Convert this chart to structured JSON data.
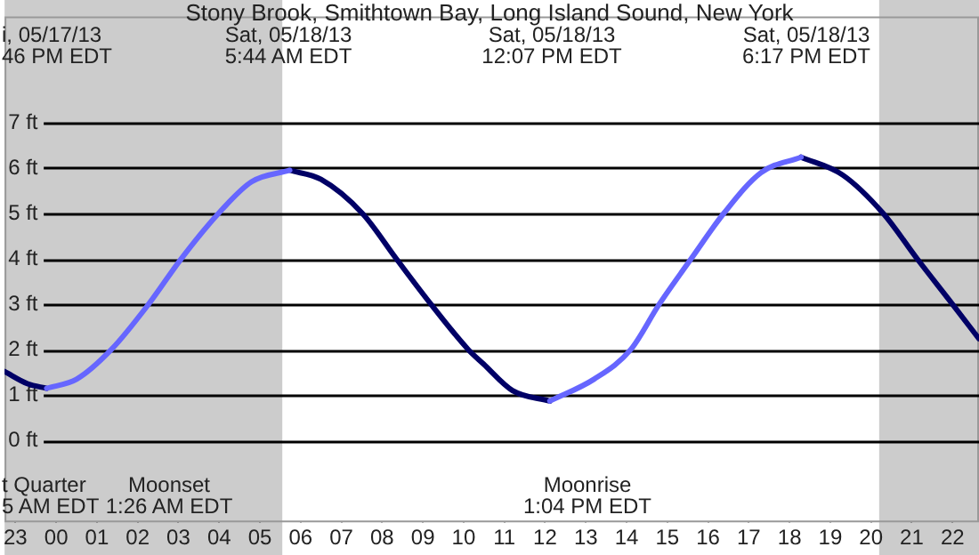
{
  "chart_data": {
    "type": "line",
    "title": "Stony Brook, Smithtown Bay, Long Island Sound, New York",
    "x": [
      "--05-17T22:44",
      "--05-17T23:18",
      "--05-17T23:46",
      "--05-18T00:30",
      "--05-18T01:21",
      "--05-18T02:16",
      "--05-18T03:04",
      "--05-18T03:59",
      "--05-18T04:48",
      "--05-18T05:44",
      "--05-18T06:30",
      "--05-18T07:31",
      "--05-18T08:21",
      "--05-18T09:12",
      "--05-18T10:07",
      "--05-18T10:29",
      "--05-18T11:12",
      "--05-18T12:07",
      "--05-18T13:12",
      "--05-18T14:06",
      "--05-18T14:48",
      "--05-18T15:35",
      "--05-18T16:23",
      "--05-18T17:18",
      "--05-18T18:17",
      "--05-18T19:18",
      "--05-18T20:18",
      "--05-18T21:08",
      "--05-18T22:00",
      "--05-18T22:39"
    ],
    "series": [
      {
        "color": "#6666ff",
        "values": [
          null,
          null,
          1.15,
          1.35,
          2,
          3,
          4,
          5,
          5.7,
          5.95,
          null,
          null,
          null,
          null,
          null,
          null,
          null,
          0.87,
          1.35,
          2,
          3,
          4,
          5,
          5.9,
          6.24,
          null,
          null,
          null,
          null,
          null
        ]
      },
      {
        "color": "#000066",
        "values": [
          1.52,
          1.25,
          1.15,
          null,
          null,
          null,
          null,
          null,
          null,
          5.95,
          5.75,
          5,
          4,
          3,
          2,
          1.69,
          1.1,
          0.87,
          null,
          null,
          null,
          null,
          null,
          null,
          6.24,
          5.85,
          5,
          4,
          3,
          2.24
        ]
      }
    ],
    "xlim": [
      "--05-17T22:44",
      "--05-18T22:39"
    ],
    "xticks": [
      {
        "value": "--05-17T23:00",
        "label": "23"
      },
      {
        "value": "--05-18T00:00",
        "label": "00"
      },
      {
        "value": "--05-18T01:00",
        "label": "01"
      },
      {
        "value": "--05-18T02:00",
        "label": "02"
      },
      {
        "value": "--05-18T03:00",
        "label": "03"
      },
      {
        "value": "--05-18T04:00",
        "label": "04"
      },
      {
        "value": "--05-18T05:00",
        "label": "05"
      },
      {
        "value": "--05-18T06:00",
        "label": "06"
      },
      {
        "value": "--05-18T07:00",
        "label": "07"
      },
      {
        "value": "--05-18T08:00",
        "label": "08"
      },
      {
        "value": "--05-18T09:00",
        "label": "09"
      },
      {
        "value": "--05-18T10:00",
        "label": "10"
      },
      {
        "value": "--05-18T11:00",
        "label": "11"
      },
      {
        "value": "--05-18T12:00",
        "label": "12"
      },
      {
        "value": "--05-18T13:00",
        "label": "13"
      },
      {
        "value": "--05-18T14:00",
        "label": "14"
      },
      {
        "value": "--05-18T15:00",
        "label": "15"
      },
      {
        "value": "--05-18T16:00",
        "label": "16"
      },
      {
        "value": "--05-18T17:00",
        "label": "17"
      },
      {
        "value": "--05-18T18:00",
        "label": "18"
      },
      {
        "value": "--05-18T19:00",
        "label": "19"
      },
      {
        "value": "--05-18T20:00",
        "label": "20"
      },
      {
        "value": "--05-18T21:00",
        "label": "21"
      },
      {
        "value": "--05-18T22:00",
        "label": "22"
      }
    ],
    "ylim": [
      -1.8,
      9.34
    ],
    "yticks": [
      {
        "value": 0,
        "label": "0 ft"
      },
      {
        "value": 1,
        "label": "1 ft"
      },
      {
        "value": 2,
        "label": "2 ft"
      },
      {
        "value": 3,
        "label": "3 ft"
      },
      {
        "value": 4,
        "label": "4 ft"
      },
      {
        "value": 5,
        "label": "5 ft"
      },
      {
        "value": 6,
        "label": "6 ft"
      },
      {
        "value": 7,
        "label": "7 ft"
      }
    ],
    "grid": "y",
    "bands": [
      {
        "axis": "x",
        "from": "--05-17T22:44",
        "to": "--05-18T05:33",
        "color": "#cccccc"
      },
      {
        "axis": "x",
        "from": "--05-18T20:12",
        "to": "--05-18T22:39",
        "color": "#cccccc"
      }
    ],
    "annotations": [
      "i, 05/17/13\n46 PM EDT",
      "Sat, 05/18/13\n5:44 AM EDT",
      "Sat, 05/18/13\n12:07 PM EDT",
      "Sat, 05/18/13\n6:17 PM EDT",
      "t Quarter\n5 AM EDT",
      "Moonset\n1:26 AM EDT",
      "Moonrise\n1:04 PM EDT"
    ]
  }
}
